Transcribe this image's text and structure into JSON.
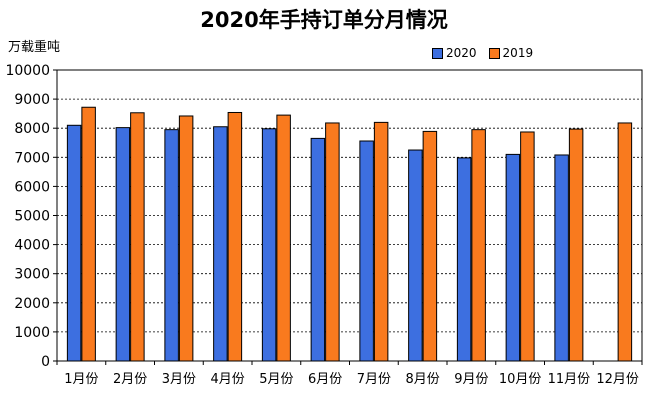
{
  "chart_data": {
    "type": "bar",
    "title": "2020年手持订单分月情况",
    "ylabel": "万载重吨",
    "xlabel": "",
    "categories": [
      "1月份",
      "2月份",
      "3月份",
      "4月份",
      "5月份",
      "6月份",
      "7月份",
      "8月份",
      "9月份",
      "10月份",
      "11月份",
      "12月份"
    ],
    "series": [
      {
        "name": "2020",
        "color": "#3d6fe0",
        "values": [
          8100,
          8020,
          7950,
          8050,
          7980,
          7650,
          7560,
          7250,
          6980,
          7100,
          7080,
          null
        ]
      },
      {
        "name": "2019",
        "color": "#f97a1e",
        "values": [
          8720,
          8530,
          8420,
          8540,
          8450,
          8180,
          8200,
          7890,
          7950,
          7870,
          7970,
          8180
        ]
      }
    ],
    "ylim": [
      0,
      10000
    ],
    "yticks": [
      "0",
      "1000",
      "2000",
      "3000",
      "4000",
      "5000",
      "6000",
      "7000",
      "8000",
      "9000",
      "10000"
    ],
    "grid": true,
    "legend_position": "top-right"
  }
}
